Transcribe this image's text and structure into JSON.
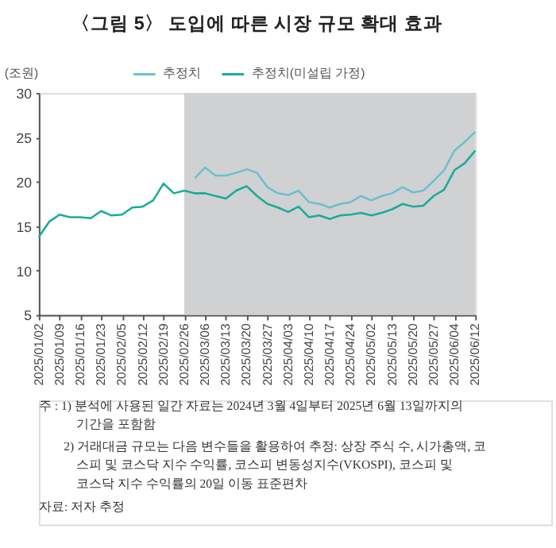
{
  "chart_data": {
    "type": "line",
    "title": "〈그림 5〉 도입에 따른 시장 규모 확대 효과",
    "ylabel": "(조원)",
    "categories": [
      "2025/01/02",
      null,
      "2025/01/09",
      null,
      "2025/01/16",
      null,
      "2025/01/23",
      null,
      "2025/02/05",
      null,
      "2025/02/12",
      null,
      "2025/02/19",
      null,
      "2025/02/26",
      null,
      "2025/03/06",
      null,
      "2025/03/13",
      null,
      "2025/03/20",
      null,
      "2025/03/27",
      null,
      "2025/04/03",
      null,
      "2025/04/10",
      null,
      "2025/04/17",
      null,
      "2025/04/24",
      null,
      "2025/05/02",
      null,
      "2025/05/13",
      null,
      "2025/05/20",
      null,
      "2025/05/27",
      null,
      "2025/06/04",
      null,
      "2025/06/12"
    ],
    "series": [
      {
        "name": "추정치",
        "color": "#6bbfcf",
        "values": [
          null,
          null,
          null,
          null,
          null,
          null,
          null,
          null,
          null,
          null,
          null,
          null,
          null,
          null,
          null,
          20.4,
          21.6,
          20.7,
          20.7,
          21.0,
          21.4,
          21.0,
          19.4,
          18.7,
          18.5,
          19.0,
          17.7,
          17.5,
          17.1,
          17.5,
          17.7,
          18.4,
          17.9,
          18.4,
          18.7,
          19.4,
          18.8,
          19.0,
          20.1,
          21.3,
          23.5,
          24.5,
          25.6
        ]
      },
      {
        "name": "추정치(미설립 가정)",
        "color": "#1aab9b",
        "values": [
          13.8,
          15.5,
          16.3,
          16.0,
          16.0,
          15.9,
          16.7,
          16.2,
          16.3,
          17.1,
          17.2,
          17.9,
          19.8,
          18.7,
          19.0,
          18.7,
          18.7,
          18.4,
          18.1,
          19.0,
          19.5,
          18.4,
          17.5,
          17.1,
          16.6,
          17.2,
          16.0,
          16.2,
          15.8,
          16.2,
          16.3,
          16.5,
          16.2,
          16.5,
          16.9,
          17.5,
          17.2,
          17.3,
          18.4,
          19.1,
          21.3,
          22.1,
          23.5
        ]
      }
    ],
    "ylim": [
      5,
      30
    ],
    "yticks": [
      5,
      10,
      15,
      20,
      25,
      30
    ],
    "grid": false,
    "legend": "top",
    "bands": [
      {
        "axis": "x",
        "from": "2025/02/26",
        "to": "2025/06/12",
        "color": "#d0d1d3"
      }
    ],
    "annotations": [
      "주   : 1) 분석에 사용된 일간 자료는 2024년 3월 4일부터 2025년 6월 13일까지의",
      "기간을 포함함",
      "2) 거래대금 규모는 다음 변수들을 활용하여 추정: 상장 주식 수, 시가총액, 코",
      "스피 및 코스닥 지수 수익률, 코스피 변동성지수(VKOSPI), 코스피 및",
      "코스닥 지수 수익률의 20일 이동 표준편차",
      "자료: 저자 추정"
    ]
  }
}
